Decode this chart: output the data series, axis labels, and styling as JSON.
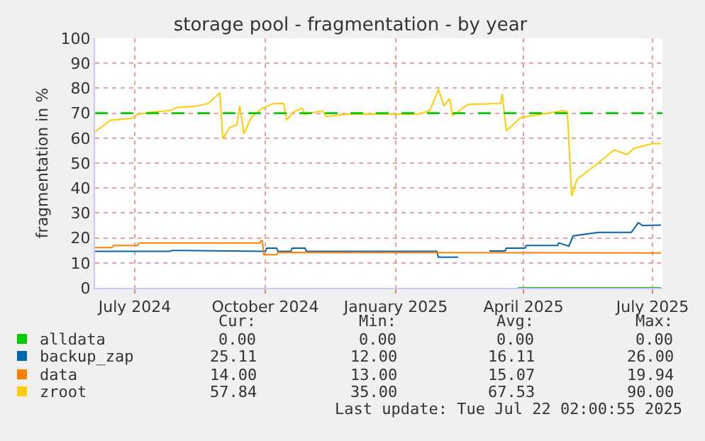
{
  "chart_data": {
    "type": "line",
    "title": "storage pool - fragmentation - by year",
    "ylabel": "fragmentation in %",
    "xlim": [
      "2024-06-17",
      "2025-07-22"
    ],
    "xticks": [
      {
        "value": "2024-07-15",
        "label": "July 2024"
      },
      {
        "value": "2024-10-15",
        "label": "October 2024"
      },
      {
        "value": "2025-01-15",
        "label": "January 2025"
      },
      {
        "value": "2025-04-15",
        "label": "April 2025"
      },
      {
        "value": "2025-07-15",
        "label": "July 2025"
      }
    ],
    "ylim": [
      0,
      100
    ],
    "yticks": [
      0,
      10,
      20,
      30,
      40,
      50,
      60,
      70,
      80,
      90,
      100
    ],
    "grid": true,
    "legend": "bottom left",
    "marker": "none",
    "line_style": "solid",
    "ref_lines": [
      {
        "axis": "y",
        "value": 70,
        "color": "#00cc00",
        "line_style": "dashed"
      }
    ],
    "series": [
      {
        "name": "alldata",
        "color": "#00cc00",
        "x": [
          "2025-04-11",
          "2025-07-21"
        ],
        "values": [
          0,
          0
        ]
      },
      {
        "name": "backup_zap",
        "color": "#0066b3",
        "x": [
          "2024-06-17",
          "2024-08-09",
          "2024-08-10",
          "2024-10-15",
          "2024-10-16",
          "2024-10-23",
          "2024-10-24",
          "2024-11-02",
          "2024-11-03",
          "2024-11-12",
          "2024-11-13",
          "2025-02-13",
          "2025-02-14",
          "2025-02-28",
          "2025-03-10",
          "2025-03-22",
          "2025-04-02",
          "2025-04-03",
          "2025-04-16",
          "2025-04-17",
          "2025-05-09",
          "2025-05-10",
          "2025-05-17",
          "2025-05-20",
          "2025-06-07",
          "2025-06-30",
          "2025-07-05",
          "2025-07-08",
          "2025-07-21"
        ],
        "values": [
          14.6,
          14.6,
          15,
          14.6,
          15.9,
          15.9,
          14.6,
          14.6,
          15.9,
          15.9,
          14.6,
          14.6,
          12.3,
          12.3,
          null,
          14.8,
          14.8,
          15.9,
          15.9,
          17,
          17,
          18,
          16.7,
          20.8,
          22.2,
          22.2,
          26.1,
          25,
          25.11
        ]
      },
      {
        "name": "data",
        "color": "#ff8000",
        "x": [
          "2024-06-17",
          "2024-06-29",
          "2024-06-30",
          "2024-07-17",
          "2024-07-18",
          "2024-10-11",
          "2024-10-12",
          "2024-10-13",
          "2024-10-14",
          "2024-10-23",
          "2024-10-24",
          "2025-07-21"
        ],
        "values": [
          16.1,
          16.1,
          17,
          17,
          18,
          18,
          18.9,
          18.9,
          13.3,
          13.3,
          14.2,
          14
        ]
      },
      {
        "name": "zroot",
        "color": "#ffcc00",
        "x": [
          "2024-06-17",
          "2024-06-28",
          "2024-07-12",
          "2024-07-17",
          "2024-07-28",
          "2024-08-09",
          "2024-08-14",
          "2024-08-27",
          "2024-09-05",
          "2024-09-13",
          "2024-09-15",
          "2024-09-20",
          "2024-09-25",
          "2024-09-27",
          "2024-09-30",
          "2024-10-05",
          "2024-10-13",
          "2024-10-21",
          "2024-10-28",
          "2024-10-30",
          "2024-11-04",
          "2024-11-10",
          "2024-11-12",
          "2024-11-24",
          "2024-11-27",
          "2024-12-10",
          "2024-12-30",
          "2025-01-30",
          "2025-02-08",
          "2025-02-14",
          "2025-02-18",
          "2025-02-22",
          "2025-02-24",
          "2025-03-07",
          "2025-03-30",
          "2025-03-31",
          "2025-04-03",
          "2025-04-13",
          "2025-05-03",
          "2025-05-13",
          "2025-05-16",
          "2025-05-19",
          "2025-05-23",
          "2025-06-05",
          "2025-06-18",
          "2025-06-27",
          "2025-07-02",
          "2025-07-15",
          "2025-07-21"
        ],
        "values": [
          62.5,
          67.2,
          67.8,
          69.5,
          70.5,
          71,
          72.3,
          72.7,
          73.9,
          78.2,
          59.7,
          64.4,
          65.3,
          72.9,
          61.6,
          68.2,
          72,
          73.9,
          73.9,
          67.2,
          70.5,
          72,
          69.5,
          71,
          68.6,
          69.5,
          69.7,
          69.5,
          71,
          79.5,
          72.9,
          75.8,
          69.1,
          73.5,
          73.9,
          77.7,
          62.9,
          68.2,
          70.1,
          71,
          70.5,
          36.9,
          43.6,
          49.2,
          55.3,
          53.4,
          55.9,
          57.8,
          57.84
        ]
      }
    ],
    "annotations": [
      "Cur:",
      "Min:",
      "Avg:",
      "Max:",
      "0.00",
      "0.00",
      "0.00",
      "0.00",
      "25.11",
      "12.00",
      "16.11",
      "26.00",
      "14.00",
      "13.00",
      "15.07",
      "19.94",
      "57.84",
      "35.00",
      "67.53",
      "90.00",
      "Last update: Tue Jul 22 02:00:55 2025"
    ]
  }
}
